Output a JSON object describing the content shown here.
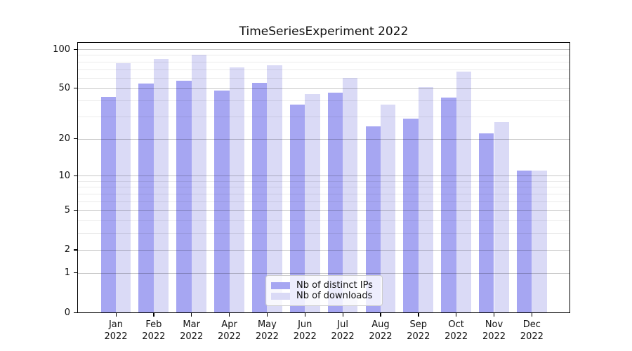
{
  "title": "TimeSeriesExperiment 2022",
  "chart_data": {
    "type": "bar",
    "title": "TimeSeriesExperiment 2022",
    "categories": [
      "Jan",
      "Feb",
      "Mar",
      "Apr",
      "May",
      "Jun",
      "Jul",
      "Aug",
      "Sep",
      "Oct",
      "Nov",
      "Dec"
    ],
    "year_label": "2022",
    "series": [
      {
        "name": "Nb of distinct IPs",
        "color": "#a6a6f2",
        "values": [
          43,
          54,
          57,
          48,
          55,
          37,
          46,
          25,
          29,
          42,
          22,
          11
        ]
      },
      {
        "name": "Nb of downloads",
        "color": "#dadaf6",
        "values": [
          78,
          84,
          91,
          72,
          75,
          45,
          60,
          37,
          51,
          67,
          27,
          11
        ]
      }
    ],
    "xlabel": "",
    "ylabel": "",
    "y_scale": "log1p",
    "y_major_ticks": [
      100,
      50,
      20,
      10,
      5,
      2,
      1,
      0
    ],
    "y_minor_gridlines": [
      3,
      4,
      6,
      7,
      8,
      9,
      30,
      40,
      60,
      70,
      80,
      90
    ],
    "ylim": [
      0,
      112
    ],
    "grid": "on",
    "grid_above_bars": true,
    "legend_position": "lower center",
    "legend_entries": [
      "Nb of distinct IPs",
      "Nb of downloads"
    ]
  },
  "colors": {
    "background": "#ffffff",
    "axis": "#000000",
    "text": "#111111",
    "grid_major": "#c7c7c7",
    "grid_minor": "#ebebeb",
    "legend_border": "#cccccc"
  }
}
